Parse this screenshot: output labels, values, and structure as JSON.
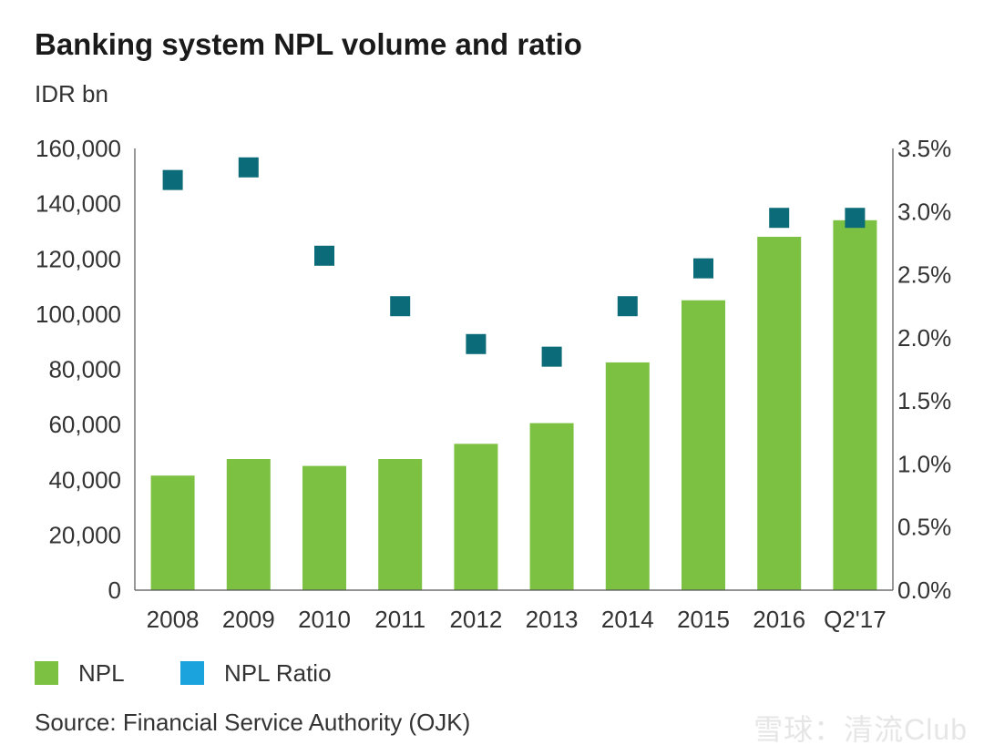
{
  "chart_data": {
    "type": "bar",
    "title": "Banking system NPL volume and ratio",
    "ylabel": "IDR bn",
    "xlabel": "",
    "categories": [
      "2008",
      "2009",
      "2010",
      "2011",
      "2012",
      "2013",
      "2014",
      "2015",
      "2016",
      "Q2'17"
    ],
    "series": [
      {
        "name": "NPL",
        "type": "bar",
        "axis": "left",
        "color": "#7dc142",
        "values": [
          41500,
          47500,
          45000,
          47500,
          53000,
          60500,
          82500,
          105000,
          128000,
          134000
        ]
      },
      {
        "name": "NPL Ratio",
        "type": "scatter",
        "axis": "right",
        "color": "#0b6b78",
        "values": [
          3.25,
          3.35,
          2.65,
          2.25,
          1.95,
          1.85,
          2.25,
          2.55,
          2.95,
          2.95
        ]
      }
    ],
    "ylim": [
      0,
      160000
    ],
    "yticks": [
      "0",
      "20,000",
      "40,000",
      "60,000",
      "80,000",
      "100,000",
      "120,000",
      "140,000",
      "160,000"
    ],
    "y2lim": [
      0,
      3.5
    ],
    "y2ticks": [
      "0.0%",
      "0.5%",
      "1.0%",
      "1.5%",
      "2.0%",
      "2.5%",
      "3.0%",
      "3.5%"
    ],
    "grid": false,
    "legend_position": "bottom-left"
  },
  "legend": {
    "npl_label": "NPL",
    "npl_color": "#7dc142",
    "ratio_label": "NPL Ratio",
    "ratio_color": "#1aa3dc"
  },
  "source": "Source: Financial Service Authority (OJK)",
  "watermark": "雪球：清流Club"
}
